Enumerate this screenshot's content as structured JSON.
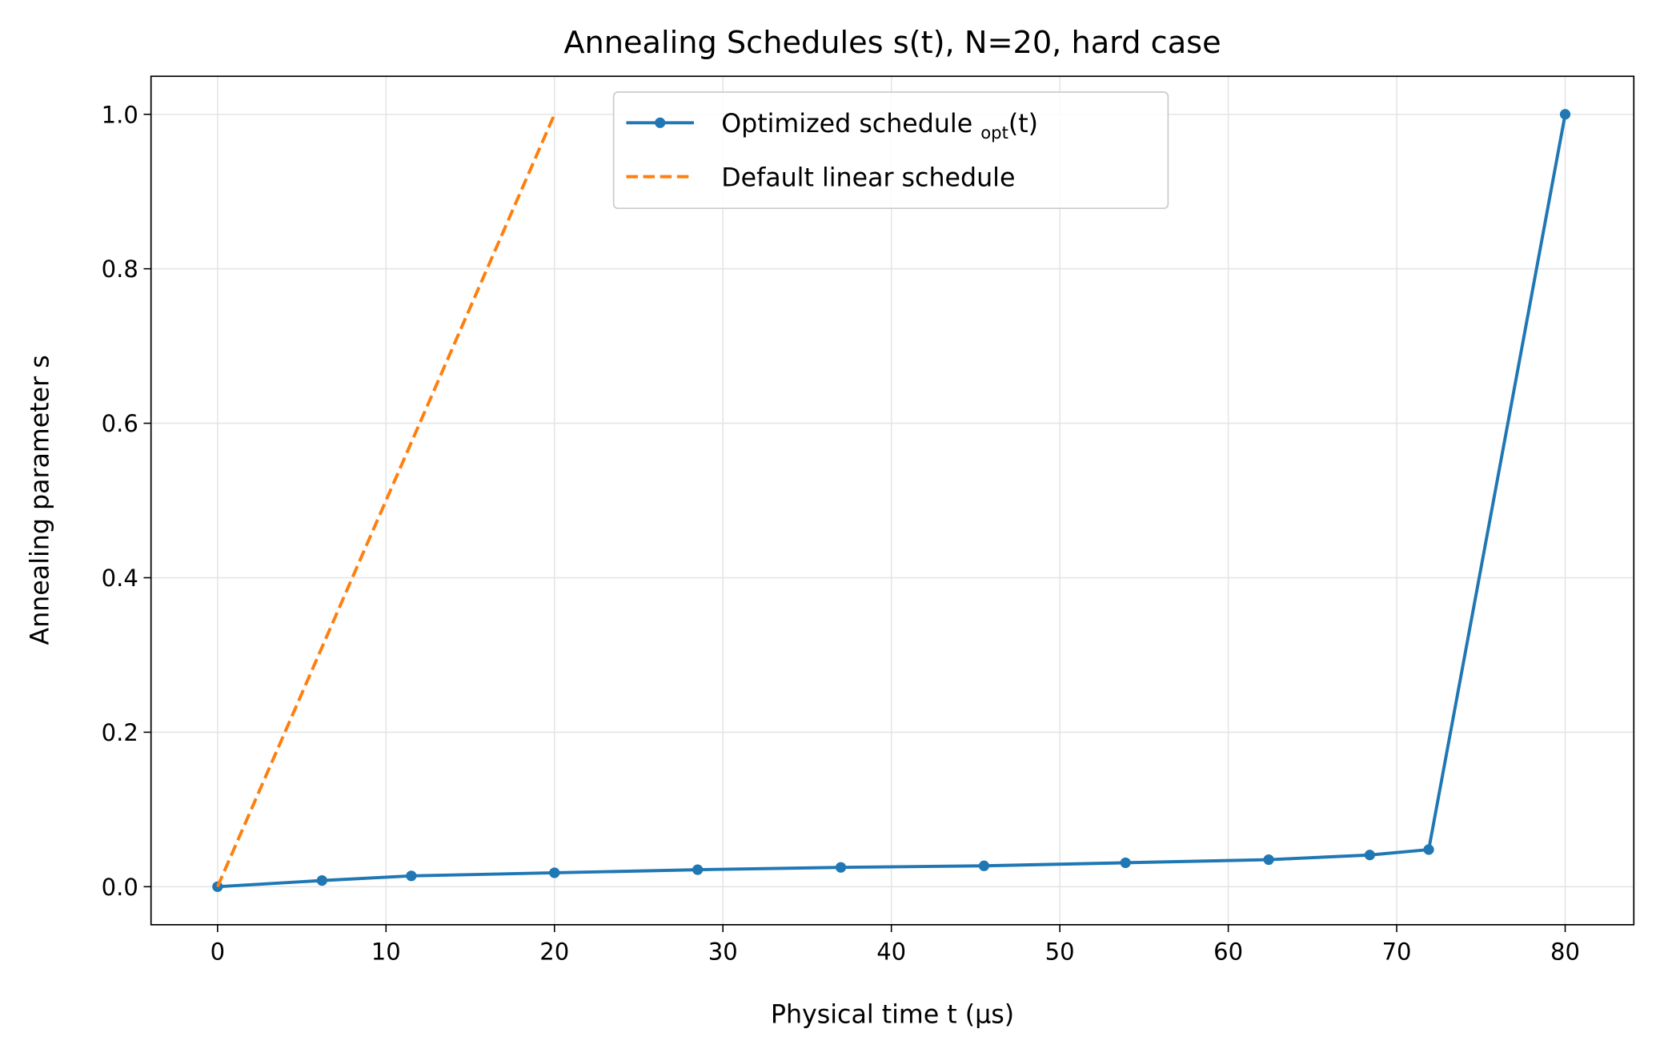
{
  "chart_data": {
    "type": "line",
    "title": "Annealing Schedules s(t), N=20, hard case",
    "xlabel": "Physical time t (μs)",
    "ylabel": "Annealing parameter s",
    "xlim": [
      -5,
      84
    ],
    "ylim": [
      -0.05,
      1.05
    ],
    "xticks": [
      0,
      10,
      20,
      30,
      40,
      50,
      60,
      70,
      80
    ],
    "yticks": [
      0.0,
      0.2,
      0.4,
      0.6,
      0.8,
      1.0
    ],
    "ytick_labels": [
      "0.0",
      "0.2",
      "0.4",
      "0.6",
      "0.8",
      "1.0"
    ],
    "grid": true,
    "legend_position": "top-center",
    "series": [
      {
        "name": "Optimized schedule s_opt(t)",
        "legend_main": "Optimized schedule ",
        "legend_sub": "opt",
        "legend_tail": "(t)",
        "color": "#1f77b4",
        "style": "solid-markers",
        "x": [
          0,
          6.2,
          11.5,
          20.0,
          28.5,
          37.0,
          45.5,
          53.9,
          62.4,
          68.4,
          71.9,
          80.0
        ],
        "y": [
          0.0,
          0.008,
          0.014,
          0.018,
          0.022,
          0.025,
          0.027,
          0.031,
          0.035,
          0.041,
          0.048,
          1.0
        ]
      },
      {
        "name": "Default linear schedule",
        "color": "#ff7f0e",
        "style": "dashed",
        "x": [
          0,
          20
        ],
        "y": [
          0.0,
          1.0
        ]
      }
    ]
  }
}
